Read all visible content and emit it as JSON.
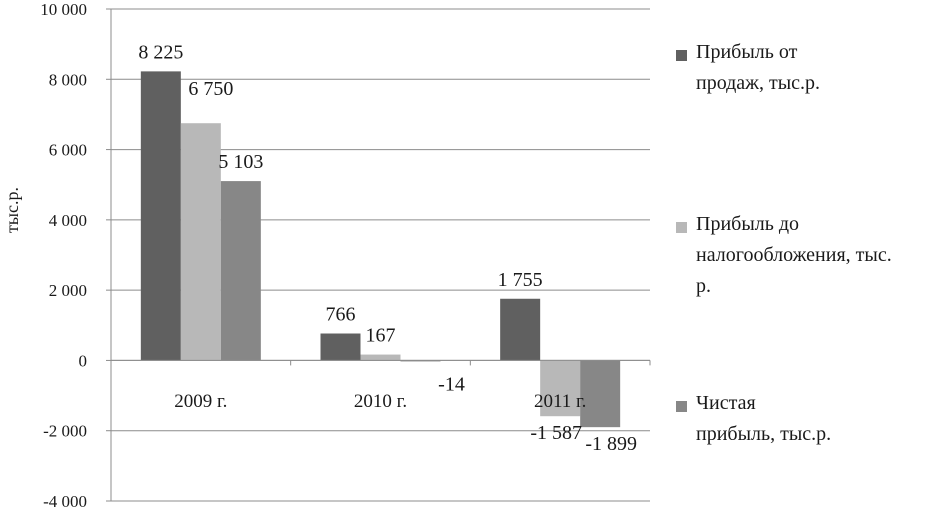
{
  "chart_data": {
    "type": "bar",
    "ylabel": "тыс.р.",
    "ylim": [
      -4000,
      10000
    ],
    "y_ticks": [
      "10 000",
      "8 000",
      "6 000",
      "4 000",
      "2 000",
      "0",
      "-2 000",
      "-4 000"
    ],
    "grid": true,
    "legend_position": "right",
    "categories": [
      "2009 г.",
      "2010 г.",
      "2011 г."
    ],
    "series": [
      {
        "name": "Прибыль от продаж, тыс.р.",
        "color": "#606060",
        "values": [
          8225,
          766,
          1755
        ],
        "labels": [
          "8 225",
          "766",
          "1 755"
        ]
      },
      {
        "name": "Прибыль до налогообложения, тыс. р.",
        "color": "#b8b8b8",
        "values": [
          6750,
          167,
          -1587
        ],
        "labels": [
          "6 750",
          "167",
          "-1 587"
        ]
      },
      {
        "name": "Чистая прибыль, тыс.р.",
        "color": "#878787",
        "values": [
          5103,
          -14,
          -1899
        ],
        "labels": [
          "5 103",
          "-14",
          "-1 899"
        ]
      }
    ]
  },
  "legend": {
    "items": [
      {
        "line1": "Прибыль от",
        "line2": "продаж, тыс.р.",
        "line3": ""
      },
      {
        "line1": "Прибыль до",
        "line2": "налогообложения, тыс.",
        "line3": "р."
      },
      {
        "line1": "Чистая",
        "line2": "прибыль, тыс.р.",
        "line3": ""
      }
    ]
  }
}
